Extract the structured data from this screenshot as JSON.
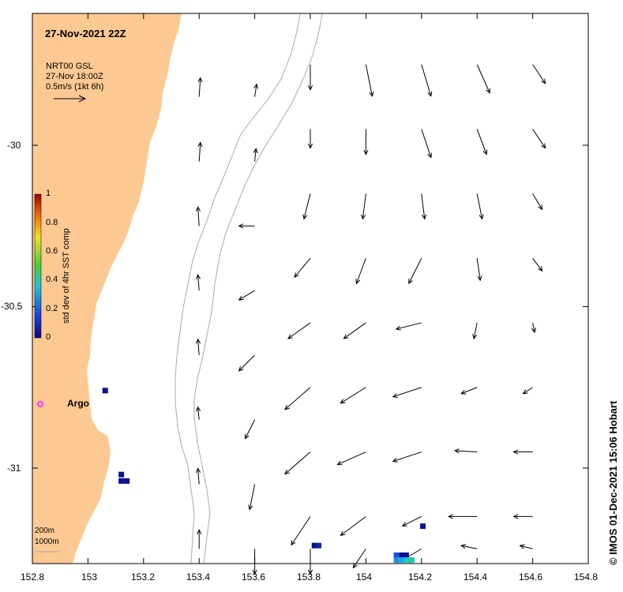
{
  "title": "27-Nov-2021 22Z",
  "reference": {
    "source": "NRT00 GSL",
    "time": "27-Nov 18:00Z",
    "scale": "0.5m/s (1kt 6h)"
  },
  "colorbar": {
    "label": "std dev of 4hr SST comp",
    "ticks": [
      "1",
      "0.8",
      "0.6",
      "0.4",
      "0.2",
      "0"
    ]
  },
  "x_ticks": [
    "152.8",
    "153",
    "153.2",
    "153.4",
    "153.6",
    "153.8",
    "154",
    "154.2",
    "154.4",
    "154.6",
    "154.8"
  ],
  "y_ticks": [
    "-30",
    "-30.5",
    "-31"
  ],
  "argo_label": "Argo",
  "isobath_labels": [
    "200m",
    "1000m"
  ],
  "credit": "© IMOS 01-Dec-2021 15:06 Hobart",
  "colors": {
    "land": "#FDC993",
    "isobath": "#aaaaaa",
    "argo": "#ff33ff",
    "sst_low": "#0a1090"
  },
  "current_vectors": [
    [
      153.4,
      -29.85,
      0.02,
      0.3
    ],
    [
      153.4,
      -30.05,
      0.02,
      0.3
    ],
    [
      153.4,
      -30.25,
      -0.02,
      0.3
    ],
    [
      153.4,
      -30.45,
      -0.02,
      0.25
    ],
    [
      153.4,
      -30.65,
      -0.02,
      0.25
    ],
    [
      153.4,
      -30.85,
      -0.02,
      0.2
    ],
    [
      153.4,
      -31.05,
      -0.02,
      0.25
    ],
    [
      153.4,
      -31.25,
      0.0,
      0.3
    ],
    [
      153.6,
      -29.85,
      0.03,
      0.2
    ],
    [
      153.6,
      -30.05,
      0.02,
      0.2
    ],
    [
      153.6,
      -30.25,
      -0.25,
      0.0
    ],
    [
      153.6,
      -30.45,
      -0.25,
      -0.15
    ],
    [
      153.6,
      -30.65,
      -0.25,
      -0.25
    ],
    [
      153.6,
      -30.85,
      -0.15,
      -0.3
    ],
    [
      153.6,
      -31.05,
      -0.08,
      -0.4
    ],
    [
      153.6,
      -31.25,
      0.0,
      -0.4
    ],
    [
      153.8,
      -29.75,
      0.0,
      -0.4
    ],
    [
      153.8,
      -29.95,
      0.0,
      -0.3
    ],
    [
      153.8,
      -30.15,
      -0.1,
      -0.4
    ],
    [
      153.8,
      -30.35,
      -0.25,
      -0.3
    ],
    [
      153.8,
      -30.55,
      -0.35,
      -0.25
    ],
    [
      153.8,
      -30.75,
      -0.4,
      -0.35
    ],
    [
      153.8,
      -30.95,
      -0.4,
      -0.35
    ],
    [
      153.8,
      -31.15,
      -0.3,
      -0.45
    ],
    [
      153.8,
      -31.25,
      0.0,
      -0.4
    ],
    [
      154.0,
      -29.75,
      0.1,
      -0.5
    ],
    [
      154.0,
      -29.95,
      0.0,
      -0.4
    ],
    [
      154.0,
      -30.15,
      -0.05,
      -0.4
    ],
    [
      154.0,
      -30.35,
      -0.15,
      -0.4
    ],
    [
      154.0,
      -30.55,
      -0.35,
      -0.25
    ],
    [
      154.0,
      -30.75,
      -0.4,
      -0.25
    ],
    [
      154.0,
      -30.95,
      -0.45,
      -0.2
    ],
    [
      154.0,
      -31.15,
      -0.4,
      -0.3
    ],
    [
      154.0,
      -31.25,
      -0.2,
      -0.3
    ],
    [
      154.2,
      -29.75,
      0.15,
      -0.5
    ],
    [
      154.2,
      -29.95,
      0.15,
      -0.45
    ],
    [
      154.2,
      -30.15,
      0.05,
      -0.4
    ],
    [
      154.2,
      -30.35,
      -0.2,
      -0.4
    ],
    [
      154.2,
      -30.55,
      -0.4,
      -0.1
    ],
    [
      154.2,
      -30.75,
      -0.45,
      -0.15
    ],
    [
      154.2,
      -30.95,
      -0.45,
      -0.15
    ],
    [
      154.2,
      -31.15,
      -0.3,
      -0.15
    ],
    [
      154.2,
      -31.25,
      -0.25,
      -0.15
    ],
    [
      154.4,
      -29.75,
      0.2,
      -0.45
    ],
    [
      154.4,
      -29.95,
      0.15,
      -0.4
    ],
    [
      154.4,
      -30.15,
      0.08,
      -0.4
    ],
    [
      154.4,
      -30.35,
      0.05,
      -0.35
    ],
    [
      154.4,
      -30.55,
      -0.05,
      -0.25
    ],
    [
      154.4,
      -30.75,
      -0.25,
      -0.1
    ],
    [
      154.4,
      -30.95,
      -0.35,
      0.02
    ],
    [
      154.4,
      -31.15,
      -0.45,
      0.0
    ],
    [
      154.4,
      -31.25,
      -0.25,
      0.05
    ],
    [
      154.6,
      -29.75,
      0.2,
      -0.3
    ],
    [
      154.6,
      -29.95,
      0.2,
      -0.3
    ],
    [
      154.6,
      -30.15,
      0.15,
      -0.25
    ],
    [
      154.6,
      -30.35,
      0.15,
      -0.2
    ],
    [
      154.6,
      -30.55,
      0.03,
      -0.15
    ],
    [
      154.6,
      -30.75,
      -0.15,
      -0.1
    ],
    [
      154.6,
      -30.95,
      -0.3,
      0.0
    ],
    [
      154.6,
      -31.15,
      -0.3,
      0.0
    ],
    [
      154.6,
      -31.25,
      -0.2,
      0.05
    ]
  ],
  "sst_pixels": [
    [
      153.062,
      -30.76,
      "#0a1090"
    ],
    [
      153.12,
      -31.02,
      "#0a1090"
    ],
    [
      153.12,
      -31.04,
      "#0a1090"
    ],
    [
      153.14,
      -31.04,
      "#0a1090"
    ],
    [
      153.815,
      -31.24,
      "#0a1090"
    ],
    [
      153.83,
      -31.24,
      "#0c2aa8"
    ],
    [
      154.205,
      -31.18,
      "#0a1090"
    ],
    [
      154.11,
      -31.27,
      "#1a4fd8"
    ],
    [
      154.13,
      -31.27,
      "#0a1090"
    ],
    [
      154.145,
      -31.27,
      "#0a1090"
    ],
    [
      154.11,
      -31.285,
      "#1f8fe8"
    ],
    [
      154.13,
      -31.285,
      "#1aa8e8"
    ],
    [
      154.15,
      -31.285,
      "#20c8b0"
    ],
    [
      154.165,
      -31.285,
      "#20c8b0"
    ]
  ]
}
